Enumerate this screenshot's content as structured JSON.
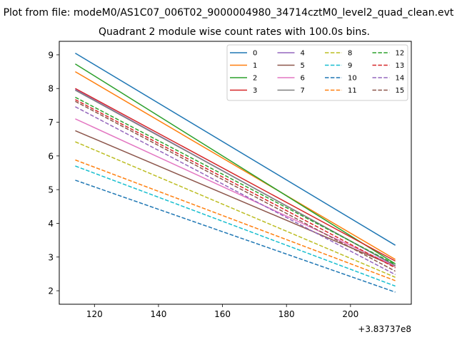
{
  "chart_data": {
    "type": "line",
    "suptitle": "Plot from file: modeM0/AS1C07_006T02_9000004980_34714cztM0_level2_quad_clean.evt",
    "title": "Quadrant 2 module wise count rates with 100.0s bins.",
    "xlabel": "",
    "ylabel": "",
    "x_offset_label": "+3.83737e8",
    "x": [
      114,
      214
    ],
    "xlim": [
      109,
      219
    ],
    "ylim": [
      1.6,
      9.4
    ],
    "x_ticks": [
      120,
      140,
      160,
      180,
      200
    ],
    "y_ticks": [
      2,
      3,
      4,
      5,
      6,
      7,
      8,
      9
    ],
    "grid": false,
    "legend_position": "top-right",
    "legend_columns": 4,
    "series": [
      {
        "name": "0",
        "values": [
          9.05,
          3.35
        ],
        "color": "#1f77b4",
        "style": "solid"
      },
      {
        "name": "1",
        "values": [
          8.5,
          2.93
        ],
        "color": "#ff7f0e",
        "style": "solid"
      },
      {
        "name": "2",
        "values": [
          8.73,
          2.8
        ],
        "color": "#2ca02c",
        "style": "solid"
      },
      {
        "name": "3",
        "values": [
          8.0,
          2.88
        ],
        "color": "#d62728",
        "style": "solid"
      },
      {
        "name": "4",
        "values": [
          7.97,
          2.74
        ],
        "color": "#9467bd",
        "style": "solid"
      },
      {
        "name": "5",
        "values": [
          6.75,
          2.72
        ],
        "color": "#8c564b",
        "style": "solid"
      },
      {
        "name": "6",
        "values": [
          7.1,
          2.73
        ],
        "color": "#e377c2",
        "style": "solid"
      },
      {
        "name": "7",
        "values": [
          7.95,
          2.75
        ],
        "color": "#7f7f7f",
        "style": "solid"
      },
      {
        "name": "8",
        "values": [
          6.42,
          2.4
        ],
        "color": "#bcbd22",
        "style": "dashed"
      },
      {
        "name": "9",
        "values": [
          5.7,
          2.14
        ],
        "color": "#17becf",
        "style": "dashed"
      },
      {
        "name": "10",
        "values": [
          5.28,
          1.96
        ],
        "color": "#1f77b4",
        "style": "dashed"
      },
      {
        "name": "11",
        "values": [
          5.88,
          2.3
        ],
        "color": "#ff7f0e",
        "style": "dashed"
      },
      {
        "name": "12",
        "values": [
          7.74,
          2.78
        ],
        "color": "#2ca02c",
        "style": "dashed"
      },
      {
        "name": "13",
        "values": [
          7.67,
          2.68
        ],
        "color": "#d62728",
        "style": "dashed"
      },
      {
        "name": "14",
        "values": [
          7.46,
          2.48
        ],
        "color": "#9467bd",
        "style": "dashed"
      },
      {
        "name": "15",
        "values": [
          7.62,
          2.58
        ],
        "color": "#8c564b",
        "style": "dashed"
      }
    ]
  }
}
